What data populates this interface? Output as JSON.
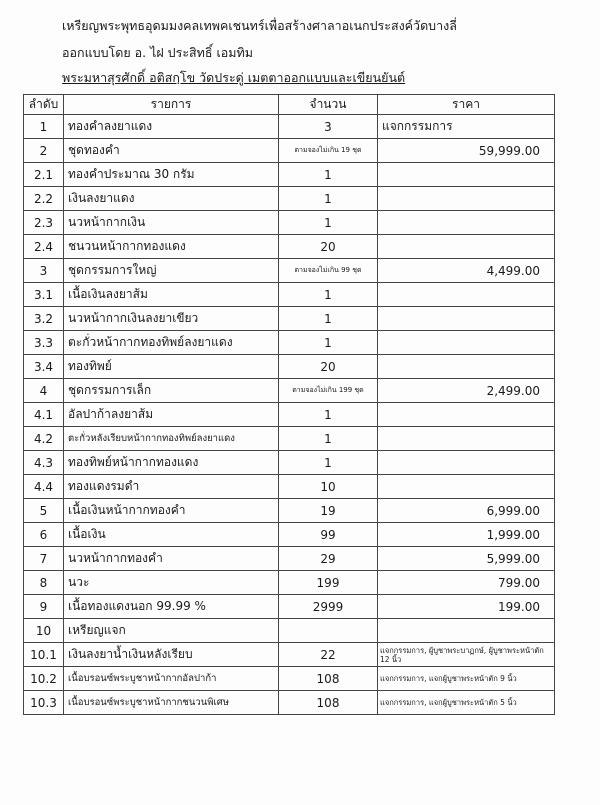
{
  "header": {
    "line1": "เหรียญพระพุทธอุดมมงคลเทพคเชนทร์เพื่อสร้างศาลาอเนกประสงค์วัดบางลี่",
    "line2": "ออกแบบโดย อ. ไฝ ประสิทธิ์ เอมทิม",
    "line3": "พระมหาสุรศักดิ์ อติสกฺโข วัดประดู่ เมตตาออกแบบและเขียนยันต์"
  },
  "table": {
    "columns": [
      "ลำดับ",
      "รายการ",
      "จำนวน",
      "ราคา"
    ],
    "rows": [
      {
        "no": "1",
        "item": "ทองคำลงยาแดง",
        "qty": "3",
        "price": "แจกกรรมการ"
      },
      {
        "no": "2",
        "item": "ชุดทองคำ",
        "qty": "ตามจองไม่เกิน 19 ชุด",
        "price": "59,999.00"
      },
      {
        "no": "2.1",
        "item": "ทองคำประมาณ 30 กรัม",
        "qty": "1",
        "price": ""
      },
      {
        "no": "2.2",
        "item": "เงินลงยาแดง",
        "qty": "1",
        "price": ""
      },
      {
        "no": "2.3",
        "item": "นวหน้ากากเงิน",
        "qty": "1",
        "price": ""
      },
      {
        "no": "2.4",
        "item": "ชนวนหน้ากากทองแดง",
        "qty": "20",
        "price": ""
      },
      {
        "no": "3",
        "item": "ชุดกรรมการใหญ่",
        "qty": "ตามจองไม่เกิน 99 ชุด",
        "price": "4,499.00"
      },
      {
        "no": "3.1",
        "item": "เนื้อเงินลงยาส้ม",
        "qty": "1",
        "price": ""
      },
      {
        "no": "3.2",
        "item": "นวหน้ากากเงินลงยาเขียว",
        "qty": "1",
        "price": ""
      },
      {
        "no": "3.3",
        "item": "ตะกั่วหน้ากากทองทิพย์ลงยาแดง",
        "qty": "1",
        "price": ""
      },
      {
        "no": "3.4",
        "item": "ทองทิพย์",
        "qty": "20",
        "price": ""
      },
      {
        "no": "4",
        "item": "ชุดกรรมการเล็ก",
        "qty": "ตามจองไม่เกิน 199 ชุด",
        "price": "2,499.00"
      },
      {
        "no": "4.1",
        "item": "อัลปาก้าลงยาส้ม",
        "qty": "1",
        "price": ""
      },
      {
        "no": "4.2",
        "item": "ตะกั่วหลังเรียบหน้ากากทองทิพย์ลงยาแดง",
        "qty": "1",
        "price": ""
      },
      {
        "no": "4.3",
        "item": "ทองทิพย์หน้ากากทองแดง",
        "qty": "1",
        "price": ""
      },
      {
        "no": "4.4",
        "item": "ทองแดงรมดำ",
        "qty": "10",
        "price": ""
      },
      {
        "no": "5",
        "item": "เนื้อเงินหน้ากากทองคำ",
        "qty": "19",
        "price": "6,999.00"
      },
      {
        "no": "6",
        "item": "เนื้อเงิน",
        "qty": "99",
        "price": "1,999.00"
      },
      {
        "no": "7",
        "item": "นวหน้ากากทองคำ",
        "qty": "29",
        "price": "5,999.00"
      },
      {
        "no": "8",
        "item": "นวะ",
        "qty": "199",
        "price": "799.00"
      },
      {
        "no": "9",
        "item": "เนื้อทองแดงนอก 99.99 %",
        "qty": "2999",
        "price": "199.00"
      },
      {
        "no": "10",
        "item": "เหรียญแจก",
        "qty": "",
        "price": ""
      },
      {
        "no": "10.1",
        "item": "เงินลงยาน้ำเงินหลังเรียบ",
        "qty": "22",
        "price": "แจกกรรมการ, ผู้บูชาพระบาฏกษ์, ผู้บูชาพระหน้าตัก 12 นิ้ว"
      },
      {
        "no": "10.2",
        "item": "เนื้อบรอนซ์พระบูชาหน้ากากอัลปาก้า",
        "qty": "108",
        "price": "แจกกรรมการ, แจกผู้บูชาพระหน้าตัก 9 นิ้ว"
      },
      {
        "no": "10.3",
        "item": "เนื้อบรอนซ์พระบูชาหน้ากากชนวนพิเศษ",
        "qty": "108",
        "price": "แจกกรรมการ, แจกผู้บูชาพระหน้าตัก 5 นิ้ว"
      }
    ]
  }
}
